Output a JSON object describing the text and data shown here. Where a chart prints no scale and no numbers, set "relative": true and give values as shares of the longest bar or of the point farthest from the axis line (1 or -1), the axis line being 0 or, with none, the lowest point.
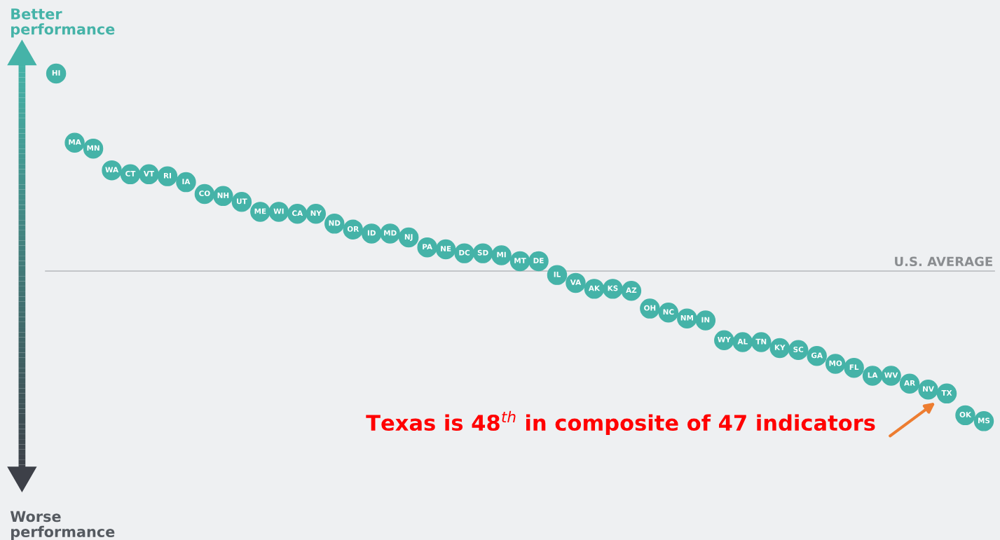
{
  "chart_data": {
    "type": "scatter",
    "relative": true,
    "marker": "circle",
    "categories": [
      "HI",
      "MA",
      "MN",
      "WA",
      "CT",
      "VT",
      "RI",
      "IA",
      "CO",
      "NH",
      "UT",
      "ME",
      "WI",
      "CA",
      "NY",
      "ND",
      "OR",
      "ID",
      "MD",
      "NJ",
      "PA",
      "NE",
      "DC",
      "SD",
      "MI",
      "MT",
      "DE",
      "IL",
      "VA",
      "AK",
      "KS",
      "AZ",
      "OH",
      "NC",
      "NM",
      "IN",
      "WY",
      "AL",
      "TN",
      "KY",
      "SC",
      "GA",
      "MO",
      "FL",
      "LA",
      "WV",
      "AR",
      "NV",
      "TX",
      "OK",
      "MS"
    ],
    "series": [
      {
        "color": "#45b3a8",
        "values": [
          1.0,
          0.65,
          0.62,
          0.51,
          0.49,
          0.49,
          0.48,
          0.45,
          0.39,
          0.38,
          0.35,
          0.3,
          0.3,
          0.29,
          0.29,
          0.24,
          0.21,
          0.19,
          0.19,
          0.17,
          0.12,
          0.11,
          0.09,
          0.09,
          0.08,
          0.05,
          0.05,
          -0.02,
          -0.06,
          -0.09,
          -0.09,
          -0.1,
          -0.19,
          -0.21,
          -0.24,
          -0.25,
          -0.35,
          -0.36,
          -0.36,
          -0.39,
          -0.4,
          -0.43,
          -0.47,
          -0.49,
          -0.53,
          -0.53,
          -0.57,
          -0.6,
          -0.62,
          -0.73,
          -0.76
        ]
      }
    ],
    "ref_lines": [
      {
        "axis": "y",
        "value": 0,
        "label": "U.S. AVERAGE",
        "color": "#b5b8bb"
      }
    ],
    "annotations": [
      "Better performance",
      "Worse performance",
      "Texas is 48$^{th}$ in composite of 47 indicators"
    ]
  }
}
